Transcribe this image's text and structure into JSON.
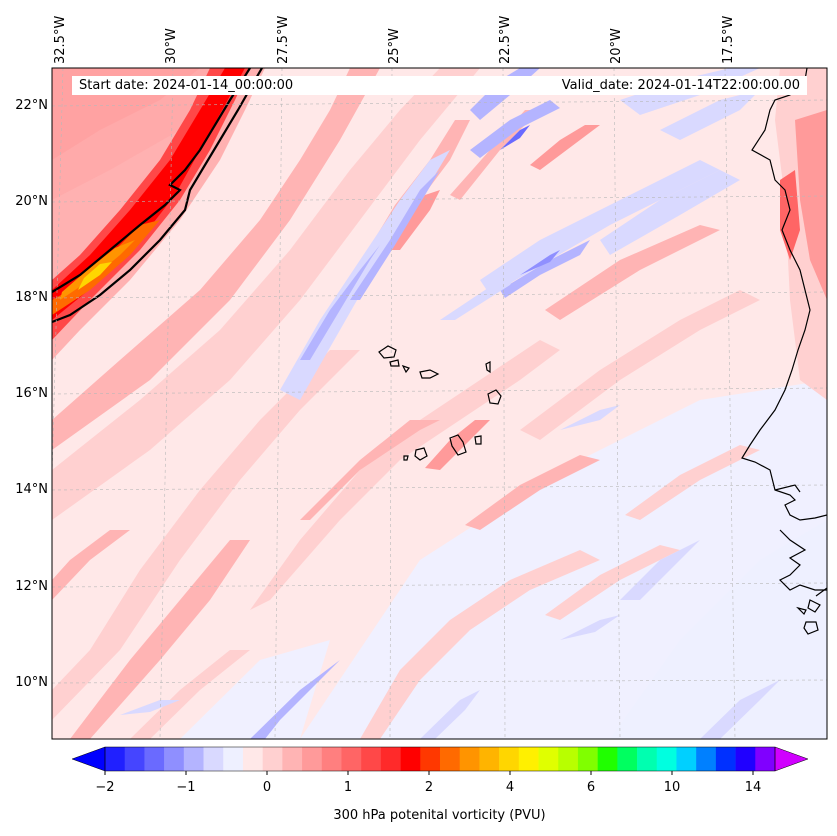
{
  "header": {
    "start_date": "Start date: 2024-01-14_00:00:00",
    "valid_date": "Valid_date: 2024-01-14T22:00:00.00"
  },
  "axes": {
    "longitude_labels": [
      "32.5°W",
      "30°W",
      "27.5°W",
      "25°W",
      "22.5°W",
      "20°W",
      "17.5°W"
    ],
    "latitude_labels": [
      "22°N",
      "20°N",
      "18°N",
      "16°N",
      "14°N",
      "12°N",
      "10°N"
    ]
  },
  "colorbar": {
    "label": "300 hPa potenital vorticity (PVU)",
    "tick_labels": [
      "−2",
      "−1",
      "0",
      "1",
      "2",
      "4",
      "6",
      "10",
      "14"
    ],
    "colors": [
      "#0000ff",
      "#2020ff",
      "#4545ff",
      "#6a6aff",
      "#8f8fff",
      "#b4b4ff",
      "#d9d9ff",
      "#eef0ff",
      "#ffe8e8",
      "#ffd0d0",
      "#ffb4b4",
      "#ff9a9a",
      "#ff7f7f",
      "#ff6565",
      "#ff4848",
      "#ff2a2a",
      "#ff0000",
      "#ff3800",
      "#ff6a00",
      "#ff9400",
      "#ffb400",
      "#ffd600",
      "#fff000",
      "#e0ff00",
      "#b8ff00",
      "#80ff00",
      "#20ff00",
      "#00ff60",
      "#00ffb0",
      "#00ffe0",
      "#00d0ff",
      "#0080ff",
      "#0030ff",
      "#2000ff",
      "#8000ff",
      "#d000ff"
    ]
  },
  "map": {
    "background_color": "#ffe8e8",
    "contour_level_line_color": "#000000",
    "features": [
      "pv-streamers",
      "cape-verde-islands",
      "west-africa-coastline",
      "graticule"
    ]
  }
}
